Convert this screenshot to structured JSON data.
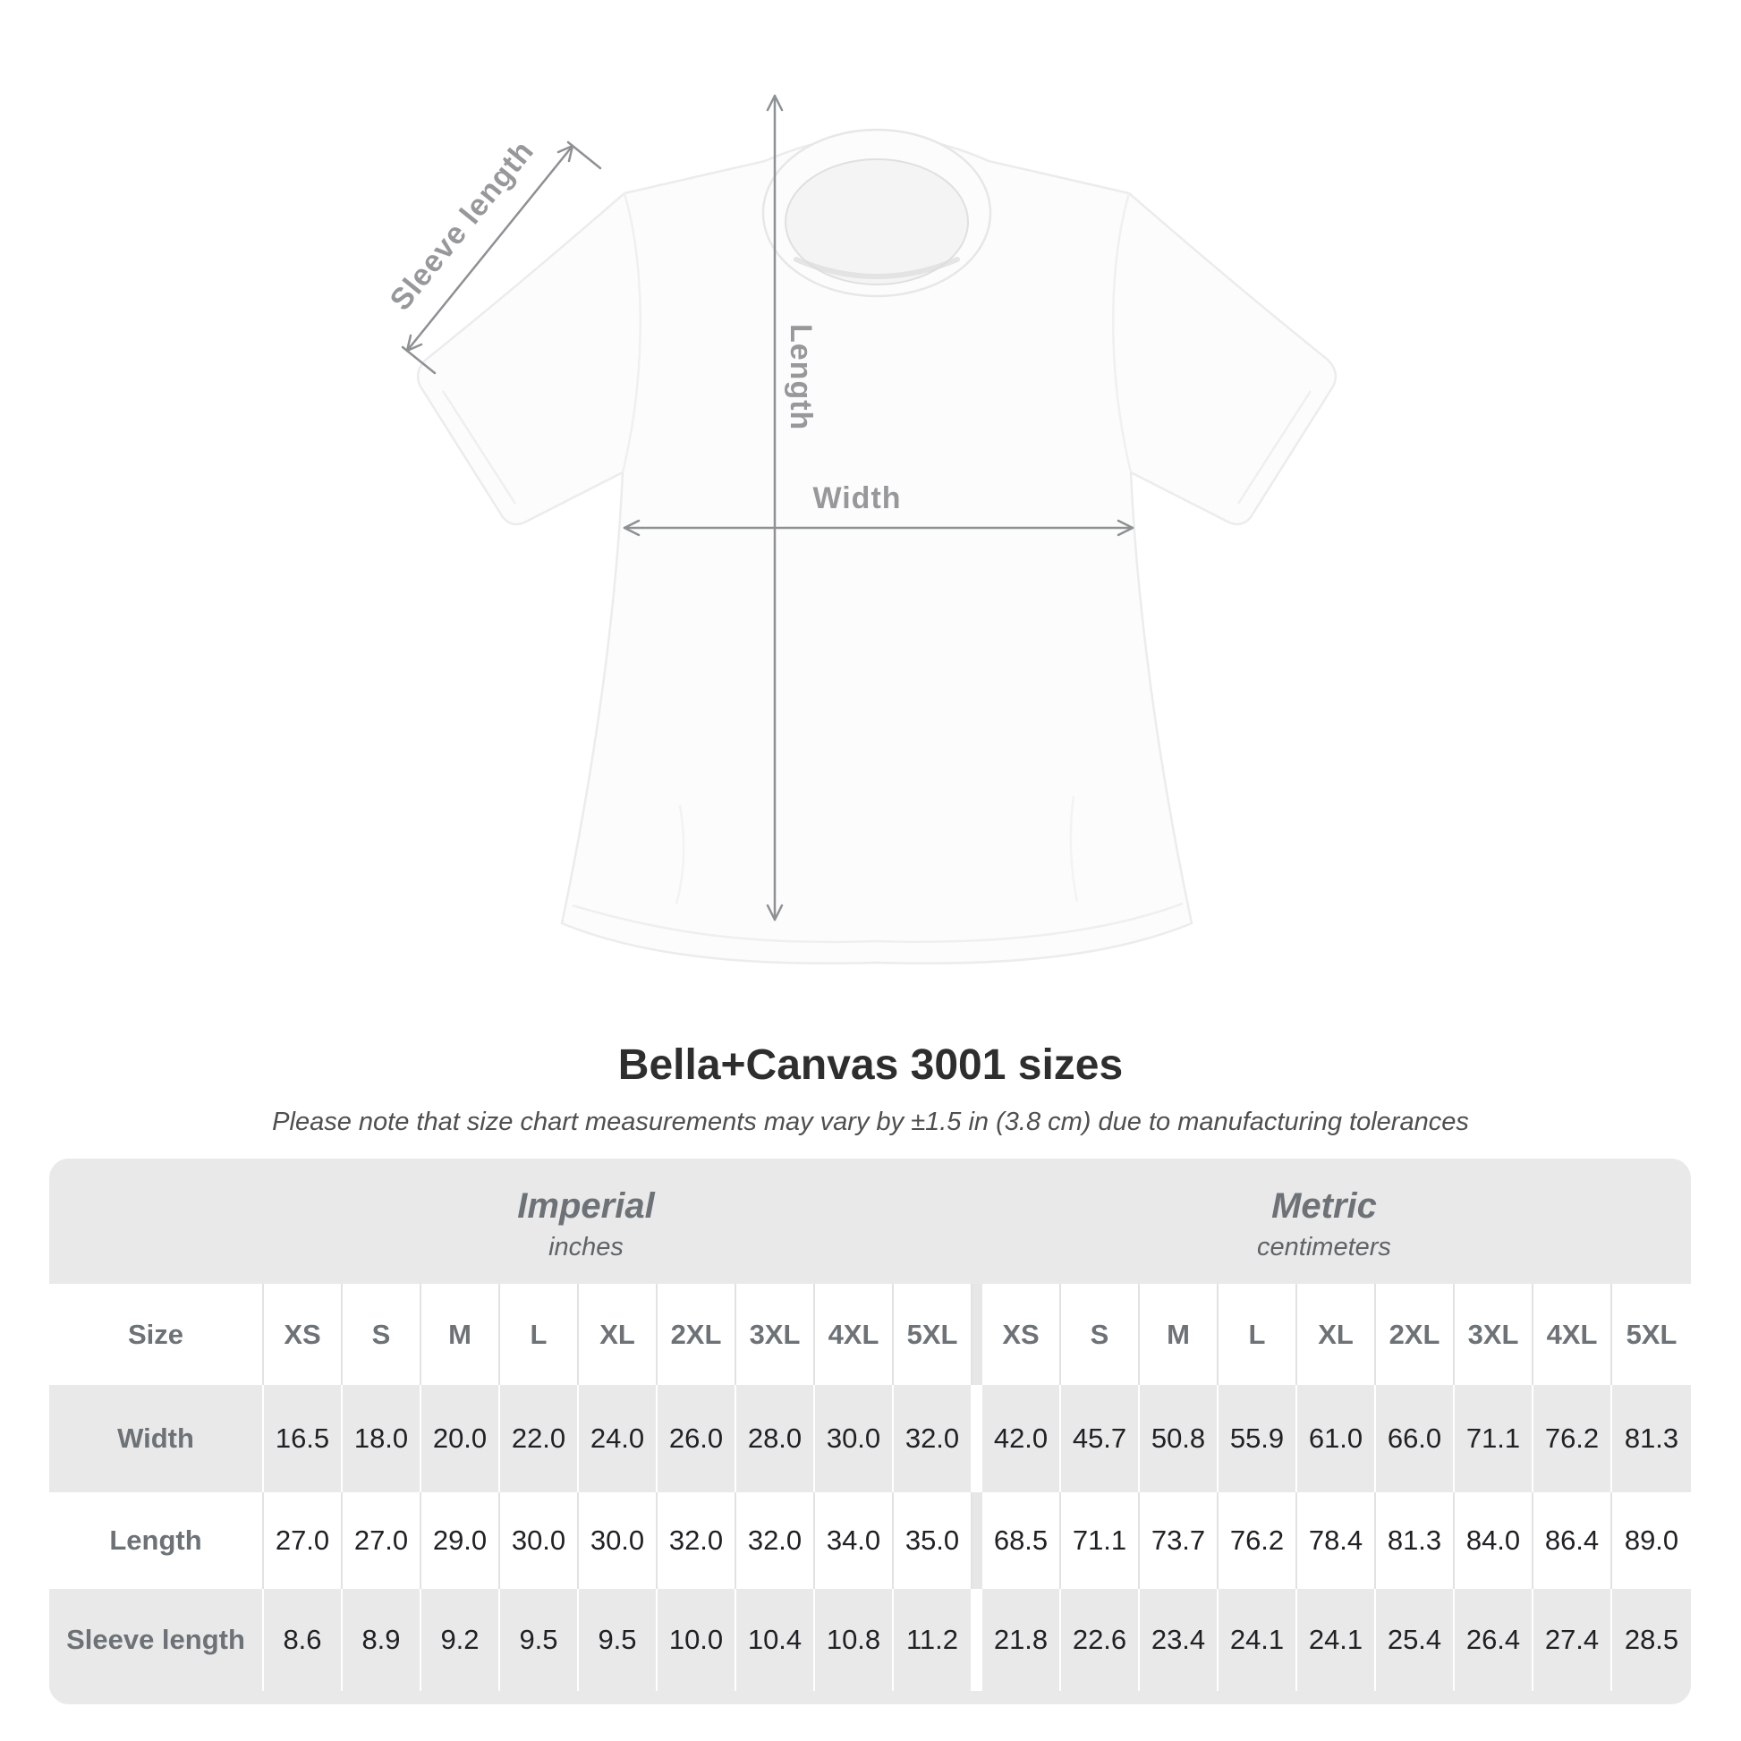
{
  "diagram": {
    "labels": {
      "sleeve_length": "Sleeve length",
      "length": "Length",
      "width": "Width"
    }
  },
  "title": "Bella+Canvas 3001 sizes",
  "subtitle": "Please note that size chart measurements may vary by ±1.5 in (3.8 cm) due to manufacturing tolerances",
  "table": {
    "unit_groups": [
      {
        "label": "Imperial",
        "sublabel": "inches"
      },
      {
        "label": "Metric",
        "sublabel": "centimeters"
      }
    ],
    "size_label": "Size",
    "sizes": [
      "XS",
      "S",
      "M",
      "L",
      "XL",
      "2XL",
      "3XL",
      "4XL",
      "5XL"
    ],
    "rows": [
      {
        "label": "Width",
        "imperial": [
          "16.5",
          "18.0",
          "20.0",
          "22.0",
          "24.0",
          "26.0",
          "28.0",
          "30.0",
          "32.0"
        ],
        "metric": [
          "42.0",
          "45.7",
          "50.8",
          "55.9",
          "61.0",
          "66.0",
          "71.1",
          "76.2",
          "81.3"
        ]
      },
      {
        "label": "Length",
        "imperial": [
          "27.0",
          "27.0",
          "29.0",
          "30.0",
          "30.0",
          "32.0",
          "32.0",
          "34.0",
          "35.0"
        ],
        "metric": [
          "68.5",
          "71.1",
          "73.7",
          "76.2",
          "78.4",
          "81.3",
          "84.0",
          "86.4",
          "89.0"
        ]
      },
      {
        "label": "Sleeve length",
        "imperial": [
          "8.6",
          "8.9",
          "9.2",
          "9.5",
          "9.5",
          "10.0",
          "10.4",
          "10.8",
          "11.2"
        ],
        "metric": [
          "21.8",
          "22.6",
          "23.4",
          "24.1",
          "24.1",
          "25.4",
          "26.4",
          "27.4",
          "28.5"
        ]
      }
    ]
  },
  "colors": {
    "table_bg": "#e9e9e9",
    "row_white": "#ffffff",
    "sep_on_white": "#e2e2e2",
    "sep_on_gray": "#ffffff",
    "head_text": "#6d7276",
    "value_text": "#202124",
    "title_text": "#2e2e2e",
    "subtitle_text": "#4f4f4f",
    "annot_line": "#8e9193",
    "annot_text": "#96989a"
  },
  "chart_data": {
    "type": "table",
    "title": "Bella+Canvas 3001 sizes",
    "subtitle": "Please note that size chart measurements may vary by ±1.5 in (3.8 cm) due to manufacturing tolerances",
    "unit_groups": [
      "Imperial (inches)",
      "Metric (centimeters)"
    ],
    "columns": [
      "Size",
      "XS",
      "S",
      "M",
      "L",
      "XL",
      "2XL",
      "3XL",
      "4XL",
      "5XL"
    ],
    "rows": [
      {
        "measure": "Width",
        "imperial_inches": [
          16.5,
          18.0,
          20.0,
          22.0,
          24.0,
          26.0,
          28.0,
          30.0,
          32.0
        ],
        "metric_cm": [
          42.0,
          45.7,
          50.8,
          55.9,
          61.0,
          66.0,
          71.1,
          76.2,
          81.3
        ]
      },
      {
        "measure": "Length",
        "imperial_inches": [
          27.0,
          27.0,
          29.0,
          30.0,
          30.0,
          32.0,
          32.0,
          34.0,
          35.0
        ],
        "metric_cm": [
          68.5,
          71.1,
          73.7,
          76.2,
          78.4,
          81.3,
          84.0,
          86.4,
          89.0
        ]
      },
      {
        "measure": "Sleeve length",
        "imperial_inches": [
          8.6,
          8.9,
          9.2,
          9.5,
          9.5,
          10.0,
          10.4,
          10.8,
          11.2
        ],
        "metric_cm": [
          21.8,
          22.6,
          23.4,
          24.1,
          24.1,
          25.4,
          26.4,
          27.4,
          28.5
        ]
      }
    ]
  }
}
